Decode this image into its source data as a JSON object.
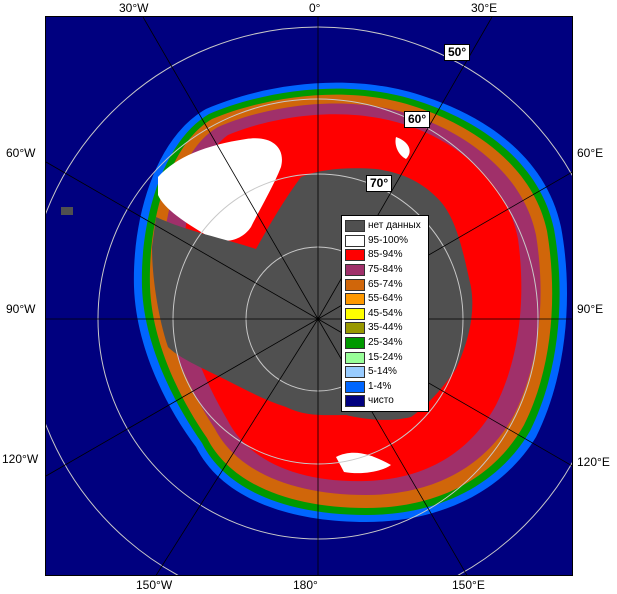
{
  "lon_labels": {
    "top": [
      "30°W",
      "0°",
      "30°E"
    ],
    "left": [
      "60°W",
      "90°W",
      "120°W"
    ],
    "right": [
      "60°E",
      "90°E",
      "120°E"
    ],
    "bottom": [
      "150°W",
      "180°",
      "150°E"
    ]
  },
  "lat_labels": [
    "50°",
    "60°",
    "70°"
  ],
  "legend": {
    "items": [
      {
        "label": "нет данных",
        "color": "#505050"
      },
      {
        "label": "95-100%",
        "color": "#ffffff"
      },
      {
        "label": "85-94%",
        "color": "#ff0000"
      },
      {
        "label": "75-84%",
        "color": "#a0306a"
      },
      {
        "label": "65-74%",
        "color": "#d0660a"
      },
      {
        "label": "55-64%",
        "color": "#ff9900"
      },
      {
        "label": "45-54%",
        "color": "#ffff00"
      },
      {
        "label": "35-44%",
        "color": "#999900"
      },
      {
        "label": "25-34%",
        "color": "#009900"
      },
      {
        "label": "15-24%",
        "color": "#99ff99"
      },
      {
        "label": "5-14%",
        "color": "#99ccff"
      },
      {
        "label": "1-4%",
        "color": "#0066ff"
      },
      {
        "label": "чисто",
        "color": "#00007f"
      }
    ]
  },
  "colors": {
    "open_water": "#00007f",
    "land": "#505050",
    "graticule": "#c8c8c8",
    "meridian": "#000000"
  }
}
